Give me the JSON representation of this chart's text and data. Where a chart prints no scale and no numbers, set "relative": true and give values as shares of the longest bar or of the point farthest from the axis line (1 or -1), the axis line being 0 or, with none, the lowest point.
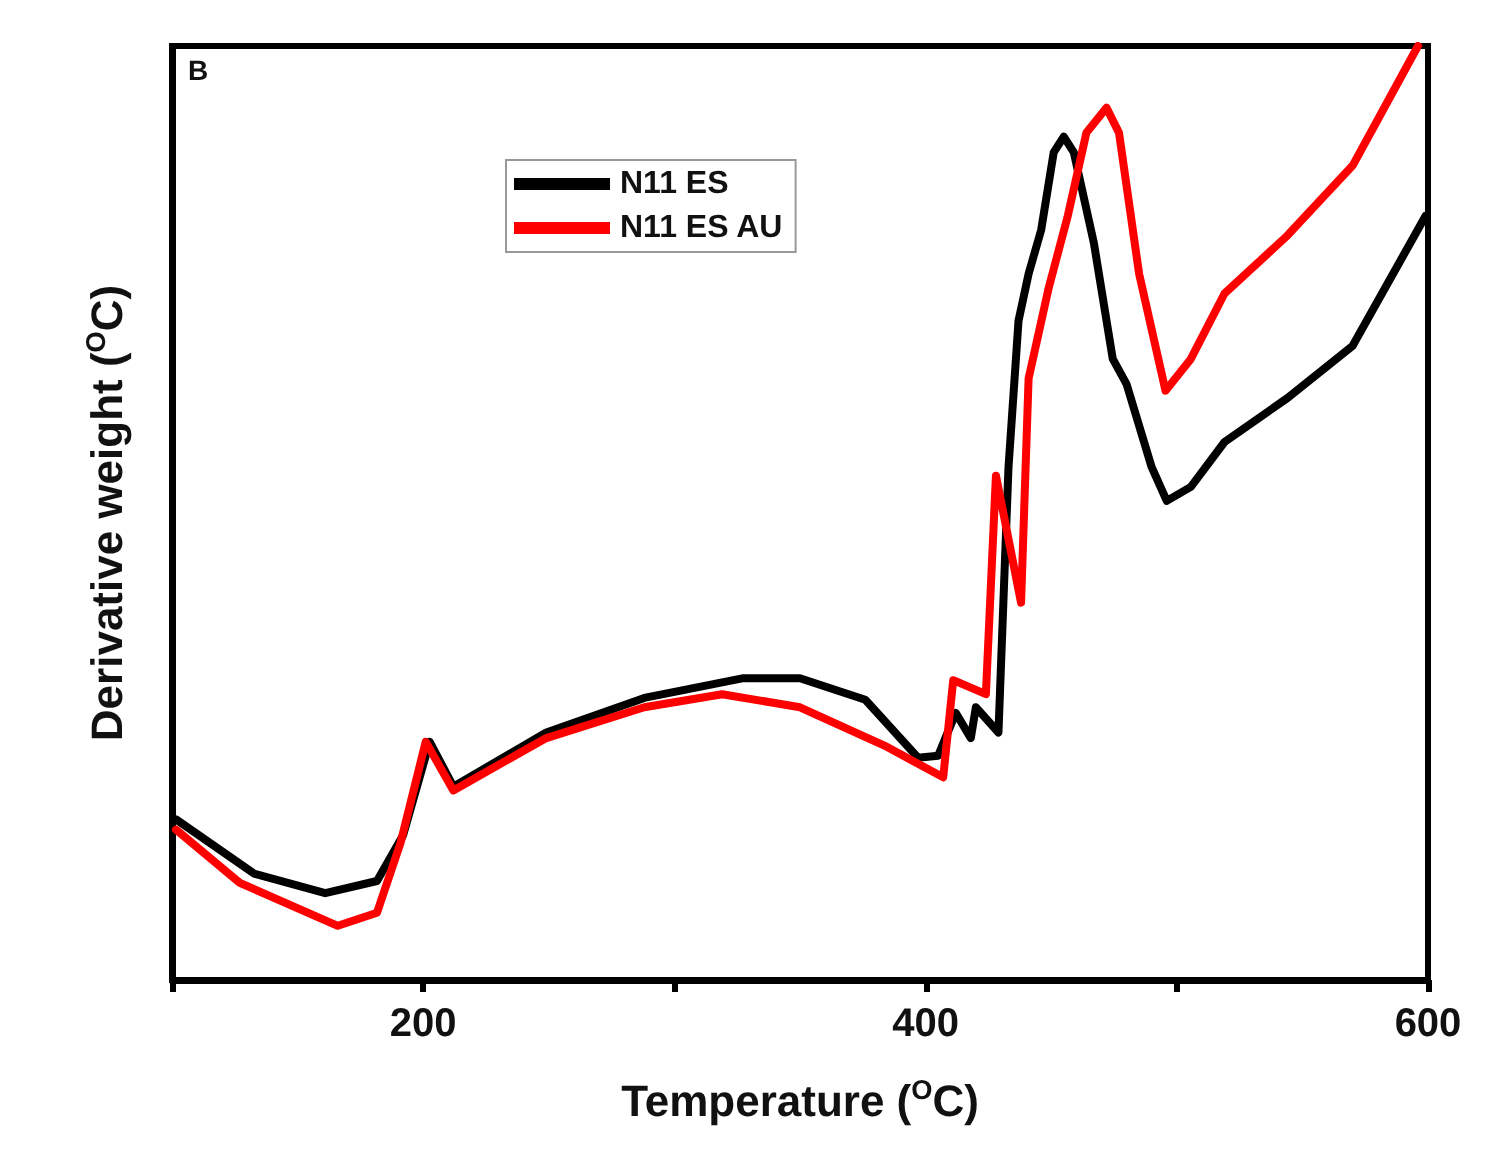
{
  "chart_data": {
    "type": "line",
    "xlabel": "Temperature ($^{O}$C)",
    "ylabel": "Derivative weight ($^{O}$C)",
    "annotations": [
      "B"
    ],
    "relative": true,
    "xlim": [
      100,
      600
    ],
    "xticks": [
      {
        "value": 100,
        "label": null
      },
      200,
      {
        "value": 300,
        "label": null
      },
      400,
      {
        "value": 500,
        "label": null
      },
      600
    ],
    "legend": "top",
    "grid": false,
    "marker": "none",
    "line_style": "solid",
    "series": [
      {
        "name": "N11 ES",
        "color": "#000000",
        "x": [
          101.6,
          132.6,
          161,
          181.6,
          192,
          202.6,
          212,
          249,
          288,
          327,
          350,
          376,
          397,
          405,
          412,
          418,
          420,
          429,
          433,
          437,
          441,
          446,
          451,
          455,
          459,
          467,
          474.5,
          480,
          490,
          496,
          505.6,
          519,
          544,
          570,
          599
        ],
        "values": [
          0.172,
          0.114,
          0.093,
          0.106,
          0.155,
          0.255,
          0.207,
          0.265,
          0.302,
          0.323,
          0.323,
          0.3,
          0.238,
          0.24,
          0.286,
          0.259,
          0.292,
          0.265,
          0.549,
          0.706,
          0.756,
          0.803,
          0.886,
          0.903,
          0.886,
          0.789,
          0.665,
          0.638,
          0.549,
          0.513,
          0.528,
          0.576,
          0.623,
          0.679,
          0.818
        ]
      },
      {
        "name": "N11 ES AU",
        "color": "#ff0000",
        "x": [
          101.6,
          127,
          166,
          181.6,
          191,
          201,
          212,
          249,
          288,
          319,
          350,
          383.6,
          407,
          411,
          424,
          428,
          438,
          441,
          449,
          456.6,
          464,
          472,
          477,
          485,
          495.5,
          505.6,
          519,
          544,
          570,
          596
        ],
        "values": [
          0.161,
          0.104,
          0.058,
          0.072,
          0.147,
          0.255,
          0.203,
          0.259,
          0.292,
          0.306,
          0.292,
          0.251,
          0.217,
          0.321,
          0.306,
          0.54,
          0.404,
          0.644,
          0.741,
          0.818,
          0.907,
          0.934,
          0.907,
          0.756,
          0.631,
          0.665,
          0.735,
          0.797,
          0.872,
          1.0
        ]
      }
    ]
  }
}
